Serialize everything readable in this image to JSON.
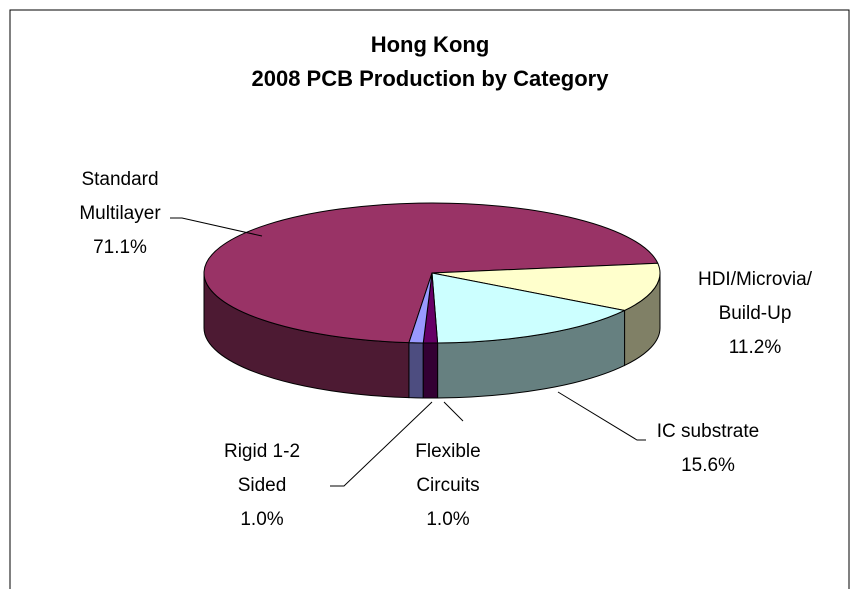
{
  "chart_data": {
    "type": "pie",
    "title": "Hong Kong\n2008 PCB Production by Category",
    "categories": [
      "Standard\nMultilayer",
      "HDI/Microvia/\nBuild-Up",
      "IC substrate",
      "Flexible\nCircuits",
      "Rigid 1-2\nSided"
    ],
    "values": [
      71.1,
      11.2,
      15.6,
      1.0,
      1.0
    ],
    "value_labels": [
      "71.1%",
      "11.2%",
      "15.6%",
      "1.0%",
      "1.0%"
    ],
    "colors": [
      "#993366",
      "#ffffcc",
      "#ccffff",
      "#660066",
      "#9999ff"
    ]
  }
}
